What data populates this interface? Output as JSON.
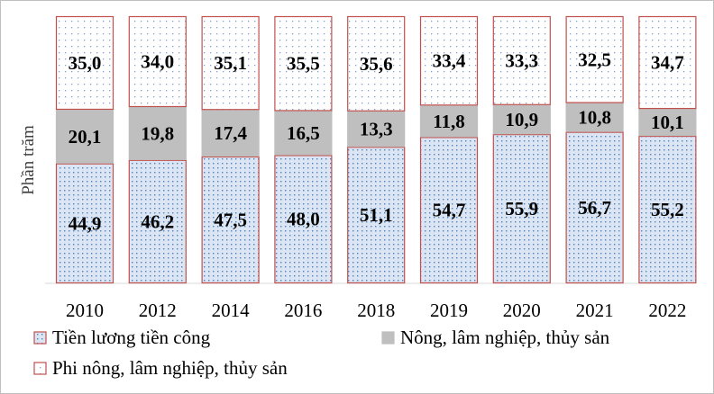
{
  "chart_data": {
    "type": "bar",
    "stacked": true,
    "percent": true,
    "ylabel": "Phần trăm",
    "categories": [
      "2010",
      "2012",
      "2014",
      "2016",
      "2018",
      "2019",
      "2020",
      "2021",
      "2022"
    ],
    "series": [
      {
        "name": "Tiền lương tiền công",
        "values": [
          44.9,
          46.2,
          47.5,
          48.0,
          51.1,
          54.7,
          55.9,
          56.7,
          55.2
        ],
        "labels": [
          "44,9",
          "46,2",
          "47,5",
          "48,0",
          "51,1",
          "54,7",
          "55,9",
          "56,7",
          "55,2"
        ],
        "fill": "#dbe5f3",
        "dot": "#4f81bd",
        "stroke": "#c0504d"
      },
      {
        "name": "Nông, lâm nghiệp, thủy sản",
        "values": [
          20.1,
          19.8,
          17.4,
          16.5,
          13.3,
          11.8,
          10.9,
          10.8,
          10.1
        ],
        "labels": [
          "20,1",
          "19,8",
          "17,4",
          "16,5",
          "13,3",
          "11,8",
          "10,9",
          "10,8",
          "10,1"
        ],
        "fill": "#bfbfbf",
        "dot": "",
        "stroke": "#bfbfbf"
      },
      {
        "name": "Phi nông, lâm nghiệp, thủy sản",
        "values": [
          35.0,
          34.0,
          35.1,
          35.5,
          35.6,
          33.4,
          33.3,
          32.5,
          34.7
        ],
        "labels": [
          "35,0",
          "34,0",
          "35,1",
          "35,5",
          "35,6",
          "33,4",
          "33,3",
          "32,5",
          "34,7"
        ],
        "fill": "#ffffff",
        "dot": "#4f81bd",
        "stroke": "#c0504d"
      }
    ],
    "legend_position": "bottom",
    "grid": false
  }
}
